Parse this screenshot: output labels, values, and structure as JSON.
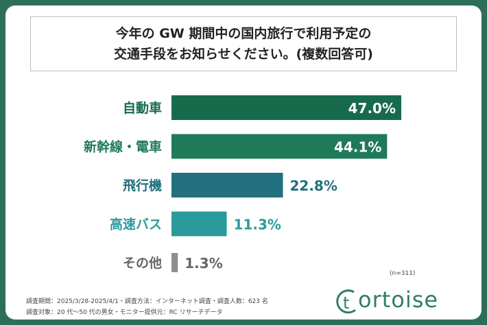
{
  "title_lines": [
    "今年の GW 期間中の国内旅行で利用予定の",
    "交通手段をお知らせください。(複数回答可)"
  ],
  "sample_note": "(n=311)",
  "footnotes": [
    "調査期間：2025/3/28-2025/4/1・調査方法：インターネット調査・調査人数：623 名",
    "調査対象：20 代～50 代の男女・モニター提供元：RC リサーチデータ"
  ],
  "logo_text": "ortoise",
  "logo_letter": "t",
  "chart_data": {
    "type": "bar",
    "orientation": "horizontal",
    "categories": [
      "自動車",
      "新幹線・電車",
      "飛行機",
      "高速バス",
      "その他"
    ],
    "values": [
      47.0,
      44.1,
      22.8,
      11.3,
      1.3
    ],
    "value_labels": [
      "47.0%",
      "44.1%",
      "22.8%",
      "11.3%",
      "1.3%"
    ],
    "bar_colors": [
      "#176b4d",
      "#1f7a5a",
      "#216f7f",
      "#2a9a9c",
      "#8e8e8e"
    ],
    "label_colors": [
      "#176b4d",
      "#1f7a5a",
      "#216f7f",
      "#2a9a9c",
      "#666666"
    ],
    "xlim": [
      0,
      50
    ],
    "grid": false
  }
}
